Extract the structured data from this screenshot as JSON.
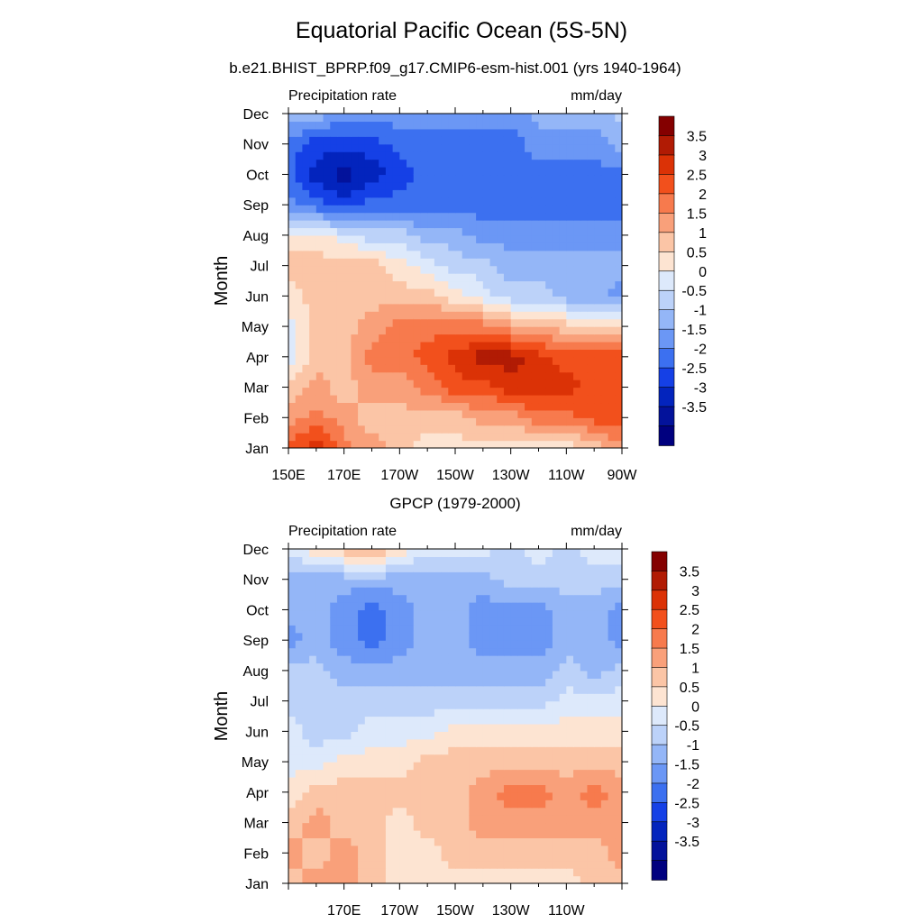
{
  "title": "Equatorial Pacific Ocean (5S-5N)",
  "subtitle": "b.e21.BHIST_BPRP.f09_g17.CMIP6-esm-hist.001 (yrs 1940-1964)",
  "chart_data": [
    {
      "type": "heatmap",
      "panel_title": "",
      "left_string": "Precipitation rate",
      "right_string": "mm/day",
      "ylabel": "Month",
      "xlabel": "",
      "x_ticks": [
        "150E",
        "170E",
        "170W",
        "150W",
        "130W",
        "110W",
        "90W"
      ],
      "y_ticks": [
        "Jan",
        "Feb",
        "Mar",
        "Apr",
        "May",
        "Jun",
        "Jul",
        "Aug",
        "Sep",
        "Oct",
        "Nov",
        "Dec"
      ],
      "xlim": [
        "150E",
        "90W"
      ],
      "ylim": [
        "Jan",
        "Dec"
      ],
      "colorbar_levels": [
        "3.5",
        "3",
        "2.5",
        "2",
        "1.5",
        "1",
        "0.5",
        "0",
        "-0.5",
        "-1",
        "-1.5",
        "-2",
        "-2.5",
        "-3",
        "-3.5"
      ],
      "colorbar_colors": [
        "#840000",
        "#b11b04",
        "#db3206",
        "#f2501c",
        "#f77a4d",
        "#f9a07a",
        "#fbc5a6",
        "#fde4d2",
        "#dde9fb",
        "#bcd2f9",
        "#94b6f7",
        "#6b97f5",
        "#3c70f0",
        "#1540e6",
        "#0324bd",
        "#03129b",
        "#00007f"
      ],
      "months": [
        "Jan",
        "Feb",
        "Mar",
        "Apr",
        "May",
        "Jun",
        "Jul",
        "Aug",
        "Sep",
        "Oct",
        "Nov",
        "Dec"
      ],
      "longitudes_east": [
        150,
        160,
        170,
        180,
        190,
        200,
        210,
        220,
        230,
        240,
        250,
        260,
        270
      ],
      "values": [
        [
          2.5,
          3.0,
          2.0,
          1.5,
          1.0,
          0.5,
          0.5,
          0.5,
          0.5,
          0.5,
          0.5,
          1.0,
          1.5
        ],
        [
          1.5,
          2.0,
          1.5,
          1.0,
          1.0,
          1.0,
          1.0,
          1.5,
          1.5,
          2.0,
          2.0,
          2.5,
          2.5
        ],
        [
          1.0,
          1.5,
          1.0,
          1.5,
          1.5,
          2.0,
          2.5,
          2.5,
          3.0,
          3.0,
          3.0,
          2.5,
          2.5
        ],
        [
          0.0,
          1.0,
          1.0,
          2.0,
          2.0,
          2.5,
          3.0,
          3.5,
          3.5,
          3.0,
          2.5,
          2.5,
          2.5
        ],
        [
          0.0,
          1.0,
          1.0,
          1.5,
          2.0,
          2.0,
          2.0,
          2.0,
          1.5,
          1.5,
          1.0,
          1.0,
          1.0
        ],
        [
          0.5,
          1.0,
          1.0,
          1.0,
          1.0,
          1.0,
          0.5,
          0.0,
          -0.5,
          -0.5,
          -1.0,
          -1.0,
          -1.5
        ],
        [
          1.0,
          1.0,
          1.0,
          1.0,
          0.5,
          0.0,
          -0.5,
          -0.5,
          -1.0,
          -1.0,
          -1.0,
          -1.0,
          -1.0
        ],
        [
          0.5,
          0.5,
          0.0,
          -0.5,
          -0.5,
          -1.0,
          -1.0,
          -1.5,
          -1.5,
          -1.5,
          -1.5,
          -1.5,
          -1.5
        ],
        [
          -1.5,
          -2.0,
          -2.5,
          -2.0,
          -2.0,
          -2.0,
          -2.0,
          -2.0,
          -2.0,
          -2.0,
          -2.0,
          -2.0,
          -2.0
        ],
        [
          -2.0,
          -3.0,
          -3.5,
          -3.0,
          -2.5,
          -2.0,
          -2.0,
          -2.0,
          -2.0,
          -2.0,
          -2.0,
          -2.0,
          -2.0
        ],
        [
          -2.0,
          -2.5,
          -2.5,
          -2.5,
          -2.0,
          -2.0,
          -2.0,
          -2.0,
          -2.0,
          -1.5,
          -1.5,
          -1.5,
          -1.0
        ],
        [
          -1.0,
          -1.0,
          -1.5,
          -1.5,
          -1.5,
          -1.5,
          -1.5,
          -1.5,
          -1.5,
          -1.0,
          -1.0,
          -1.0,
          -0.5
        ]
      ]
    },
    {
      "type": "heatmap",
      "panel_title": "GPCP (1979-2000)",
      "left_string": "Precipitation rate",
      "right_string": "mm/day",
      "ylabel": "Month",
      "xlabel": "",
      "x_ticks": [
        "170E",
        "170W",
        "150W",
        "130W",
        "110W"
      ],
      "y_ticks": [
        "Jan",
        "Feb",
        "Mar",
        "Apr",
        "May",
        "Jun",
        "Jul",
        "Aug",
        "Sep",
        "Oct",
        "Nov",
        "Dec"
      ],
      "xlim": [
        "150E",
        "90W"
      ],
      "ylim": [
        "Jan",
        "Dec"
      ],
      "colorbar_levels": [
        "3.5",
        "3",
        "2.5",
        "2",
        "1.5",
        "1",
        "0.5",
        "0",
        "-0.5",
        "-1",
        "-1.5",
        "-2",
        "-2.5",
        "-3",
        "-3.5"
      ],
      "colorbar_colors": [
        "#840000",
        "#b11b04",
        "#db3206",
        "#f2501c",
        "#f77a4d",
        "#f9a07a",
        "#fbc5a6",
        "#fde4d2",
        "#dde9fb",
        "#bcd2f9",
        "#94b6f7",
        "#6b97f5",
        "#3c70f0",
        "#1540e6",
        "#0324bd",
        "#03129b",
        "#00007f"
      ],
      "months": [
        "Jan",
        "Feb",
        "Mar",
        "Apr",
        "May",
        "Jun",
        "Jul",
        "Aug",
        "Sep",
        "Oct",
        "Nov",
        "Dec"
      ],
      "longitudes_east": [
        150,
        160,
        170,
        180,
        190,
        200,
        210,
        220,
        230,
        240,
        250,
        260,
        270
      ],
      "values": [
        [
          1.0,
          1.5,
          1.5,
          1.0,
          0.5,
          0.5,
          0.5,
          0.5,
          0.5,
          0.5,
          0.5,
          1.0,
          1.0
        ],
        [
          1.5,
          1.0,
          1.5,
          1.0,
          0.5,
          0.5,
          1.0,
          1.0,
          1.0,
          1.0,
          1.0,
          1.0,
          1.5
        ],
        [
          1.0,
          1.5,
          1.0,
          1.0,
          0.5,
          1.0,
          1.0,
          1.5,
          1.5,
          1.5,
          1.5,
          1.5,
          1.5
        ],
        [
          0.5,
          1.0,
          1.0,
          1.0,
          1.0,
          1.0,
          1.0,
          1.5,
          2.0,
          2.0,
          1.5,
          2.0,
          1.5
        ],
        [
          0.0,
          0.0,
          0.5,
          0.5,
          0.5,
          1.0,
          1.0,
          1.0,
          1.0,
          1.0,
          1.0,
          1.0,
          1.0
        ],
        [
          0.0,
          -0.5,
          -0.5,
          0.0,
          0.0,
          0.0,
          0.5,
          0.5,
          0.5,
          0.5,
          0.5,
          0.5,
          0.5
        ],
        [
          -0.5,
          -0.5,
          -0.5,
          -0.5,
          -0.5,
          -0.5,
          -0.5,
          -0.5,
          -0.5,
          -0.5,
          0.0,
          0.0,
          0.0
        ],
        [
          -0.5,
          -0.5,
          -1.0,
          -1.0,
          -1.0,
          -1.0,
          -1.0,
          -1.0,
          -1.0,
          -1.0,
          -0.5,
          -1.0,
          -0.5
        ],
        [
          -1.5,
          -1.0,
          -1.5,
          -2.0,
          -1.5,
          -1.0,
          -1.0,
          -1.5,
          -1.5,
          -1.5,
          -1.0,
          -1.0,
          -1.5
        ],
        [
          -1.0,
          -1.0,
          -1.5,
          -2.0,
          -1.5,
          -1.0,
          -1.0,
          -1.5,
          -1.5,
          -1.5,
          -1.0,
          -1.0,
          -1.5
        ],
        [
          -1.0,
          -1.0,
          -1.0,
          -1.0,
          -1.0,
          -1.0,
          -1.0,
          -1.0,
          -0.5,
          -0.5,
          -0.5,
          -0.5,
          -0.5
        ],
        [
          0.0,
          0.5,
          1.0,
          1.5,
          0.5,
          0.0,
          0.0,
          0.0,
          -0.5,
          0.0,
          -0.5,
          0.0,
          0.0
        ]
      ]
    }
  ]
}
